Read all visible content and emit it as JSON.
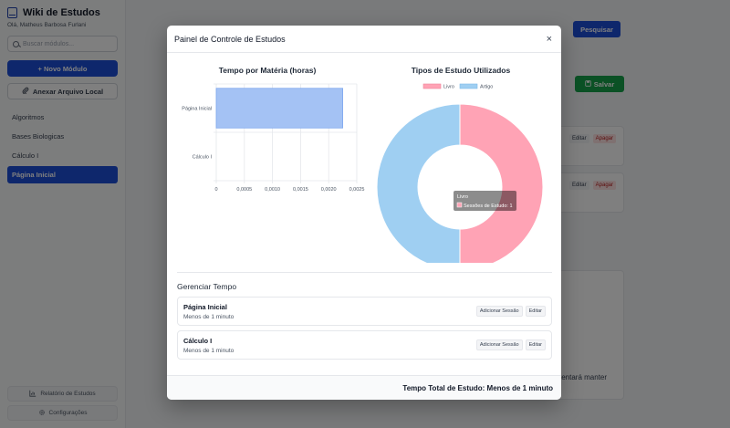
{
  "sidebar": {
    "brand": "Wiki de Estudos",
    "greeting": "Olá, Matheus Barbosa Furlani",
    "search_placeholder": "Buscar módulos...",
    "new_module": "+ Novo Módulo",
    "attach_file": "Anexar Arquivo Local",
    "items": [
      {
        "label": "Algoritmos",
        "active": false
      },
      {
        "label": "Bases Biologicas",
        "active": false
      },
      {
        "label": "Cálculo I",
        "active": false
      },
      {
        "label": "Página Inicial",
        "active": true
      }
    ],
    "report": "Relatório de Estudos",
    "settings": "Configurações"
  },
  "main": {
    "search_button": "Pesquisar",
    "save_button": "Salvar",
    "edit_label": "Editar",
    "delete_label": "Apagar",
    "partial_text": "tentará manter"
  },
  "modal": {
    "title": "Painel de Controle de Estudos",
    "close": "×",
    "bar_chart_title": "Tempo por Matéria (horas)",
    "pie_chart_title": "Tipos de Estudo Utilizados",
    "manage_title": "Gerenciar Tempo",
    "add_session": "Adicionar Sessão",
    "edit": "Editar",
    "subjects": [
      {
        "name": "Página Inicial",
        "time": "Menos de 1 minuto"
      },
      {
        "name": "Cálculo I",
        "time": "Menos de 1 minuto"
      }
    ],
    "footer": "Tempo Total de Estudo: Menos de 1 minuto"
  },
  "chart_data": [
    {
      "type": "bar",
      "orientation": "horizontal",
      "title": "Tempo por Matéria (horas)",
      "categories": [
        "Página Inicial",
        "Cálculo I"
      ],
      "values": [
        0.00225,
        0
      ],
      "xlim": [
        0,
        0.0025
      ],
      "xticks": [
        "0",
        "0,0005",
        "0,0010",
        "0,0015",
        "0,0020",
        "0,0025"
      ],
      "color": "#a4c2f4",
      "grid": true
    },
    {
      "type": "pie",
      "donut": true,
      "title": "Tipos de Estudo Utilizados",
      "labels": [
        "Livro",
        "Artigo"
      ],
      "values": [
        1,
        1
      ],
      "colors": [
        "#ffa3b5",
        "#9fcff2"
      ],
      "legend": "top",
      "tooltip": {
        "title": "Livro",
        "body": "Sessões de Estudo: 1"
      }
    }
  ]
}
